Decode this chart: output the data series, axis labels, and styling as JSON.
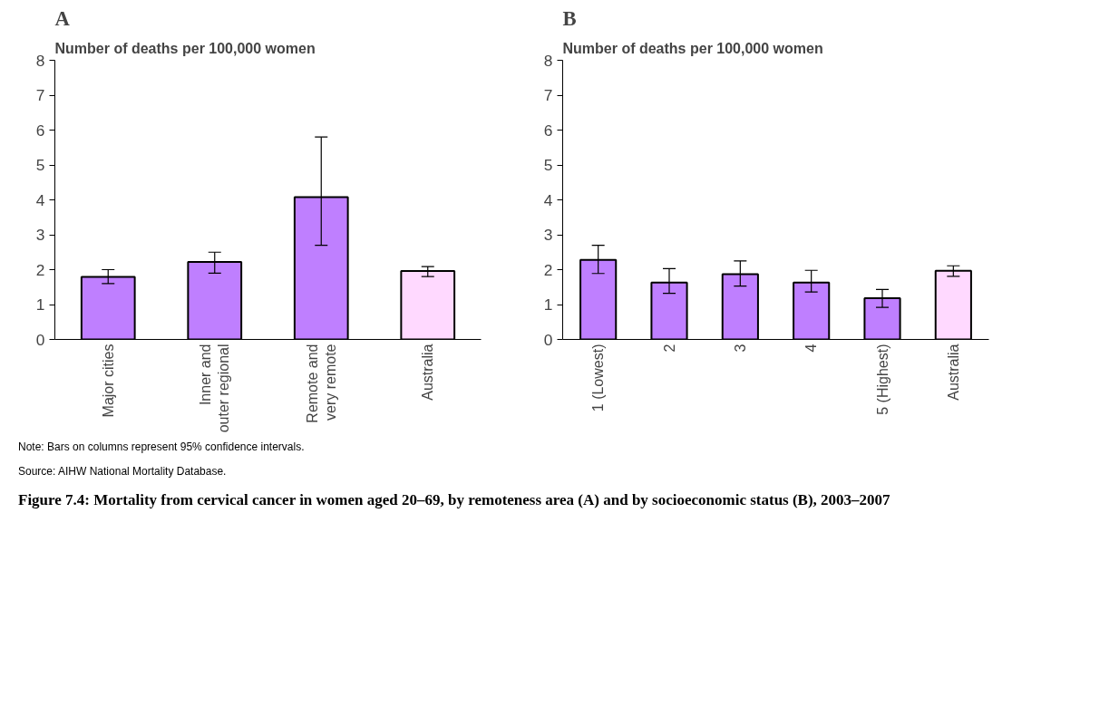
{
  "chart_data": [
    {
      "type": "bar",
      "title": "A",
      "ylabel": "Number of deaths per 100,000 women",
      "categories": [
        "Major cities",
        "Inner and outer regional",
        "Remote and very remote",
        "Australia"
      ],
      "values": [
        1.79,
        2.22,
        4.08,
        1.96
      ],
      "colors": [
        "#bf7fff",
        "#bf7fff",
        "#bf7fff",
        "#ffd9ff"
      ],
      "errors": [
        [
          1.6,
          2.0
        ],
        [
          1.9,
          2.5
        ],
        [
          2.7,
          5.8
        ],
        [
          1.8,
          2.09
        ]
      ],
      "ylim": [
        0,
        8
      ],
      "yticks": [
        0,
        1,
        2,
        3,
        4,
        5,
        6,
        7,
        8
      ],
      "grid": false
    },
    {
      "type": "bar",
      "title": "B",
      "ylabel": "Number of deaths per 100,000 women",
      "categories": [
        "1 (Lowest)",
        "2",
        "3",
        "4",
        "5 (Highest)",
        "Australia"
      ],
      "values": [
        2.28,
        1.63,
        1.87,
        1.63,
        1.18,
        1.97
      ],
      "colors": [
        "#bf7fff",
        "#bf7fff",
        "#bf7fff",
        "#bf7fff",
        "#bf7fff",
        "#ffd9ff"
      ],
      "errors": [
        [
          1.89,
          2.7
        ],
        [
          1.32,
          2.03
        ],
        [
          1.53,
          2.25
        ],
        [
          1.36,
          1.98
        ],
        [
          0.92,
          1.43
        ],
        [
          1.81,
          2.11
        ]
      ],
      "ylim": [
        0,
        8
      ],
      "yticks": [
        0,
        1,
        2,
        3,
        4,
        5,
        6,
        7,
        8
      ],
      "grid": false,
      "annotations": [
        "Note: Bars on columns represent 95% confidence intervals.",
        "Source: AIHW National Mortality Database.",
        "Figure 7.4: Mortality from cervical cancer in women aged 20–69, by remoteness area (A) and by socioeconomic status (B), 2003–2007"
      ]
    }
  ]
}
